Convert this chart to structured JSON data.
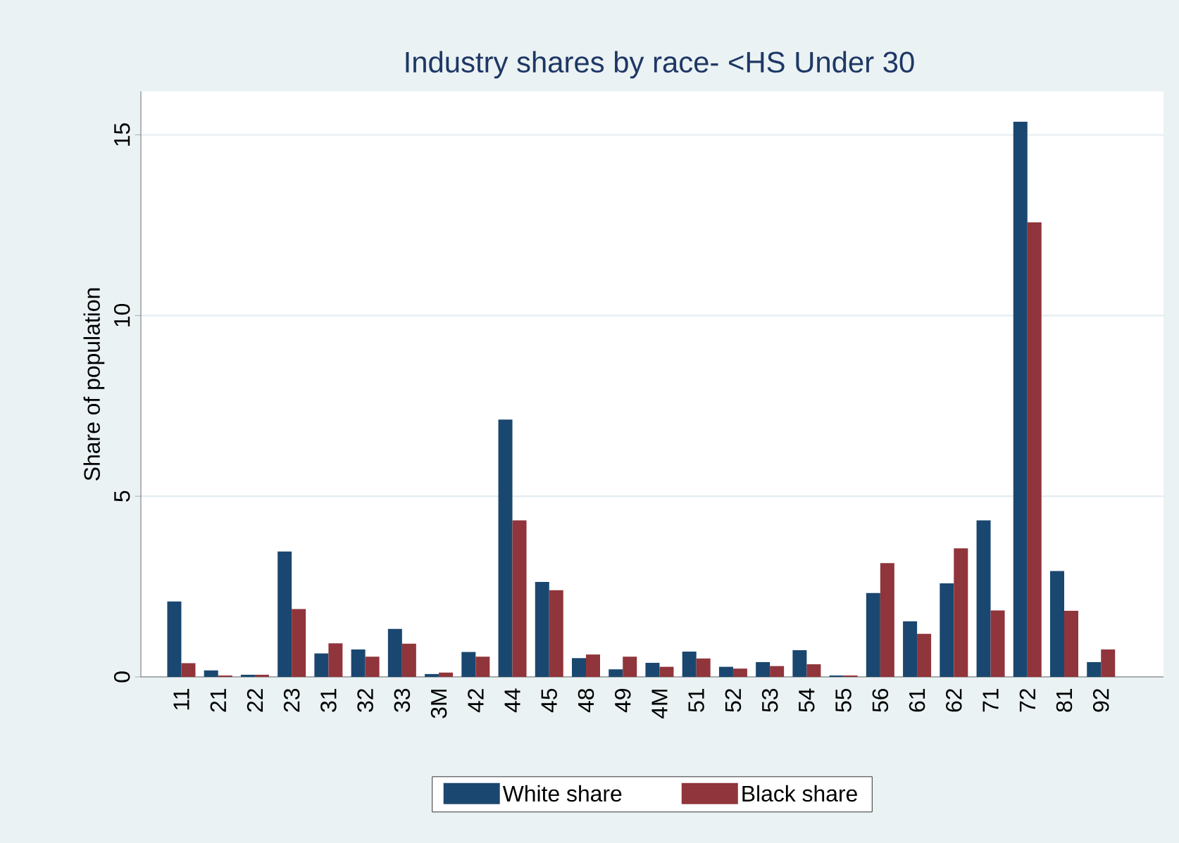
{
  "chart_data": {
    "type": "bar",
    "title": "Industry shares by race- <HS Under 30",
    "ylabel": "Share of population",
    "categories": [
      "11",
      "21",
      "22",
      "23",
      "31",
      "32",
      "33",
      "3M",
      "42",
      "44",
      "45",
      "48",
      "49",
      "4M",
      "51",
      "52",
      "53",
      "54",
      "55",
      "56",
      "61",
      "62",
      "71",
      "72",
      "81",
      "92"
    ],
    "series": [
      {
        "name": "White share",
        "color": "#1a476f",
        "values": [
          2.09,
          0.18,
          0.06,
          3.47,
          0.65,
          0.76,
          1.33,
          0.08,
          0.69,
          7.12,
          2.63,
          0.52,
          0.21,
          0.39,
          0.7,
          0.28,
          0.41,
          0.74,
          0.04,
          2.32,
          1.54,
          2.59,
          4.33,
          15.36,
          2.93,
          0.41
        ]
      },
      {
        "name": "Black share",
        "color": "#90353b",
        "values": [
          0.38,
          0.04,
          0.06,
          1.88,
          0.93,
          0.56,
          0.92,
          0.12,
          0.56,
          4.33,
          2.4,
          0.62,
          0.56,
          0.28,
          0.51,
          0.23,
          0.3,
          0.35,
          0.04,
          3.15,
          1.19,
          3.56,
          1.84,
          12.58,
          1.83,
          0.76
        ]
      }
    ],
    "ylim": [
      0,
      16.2
    ],
    "yticks": [
      0,
      5,
      10,
      15
    ],
    "grid": "y",
    "legend": "bottom"
  }
}
